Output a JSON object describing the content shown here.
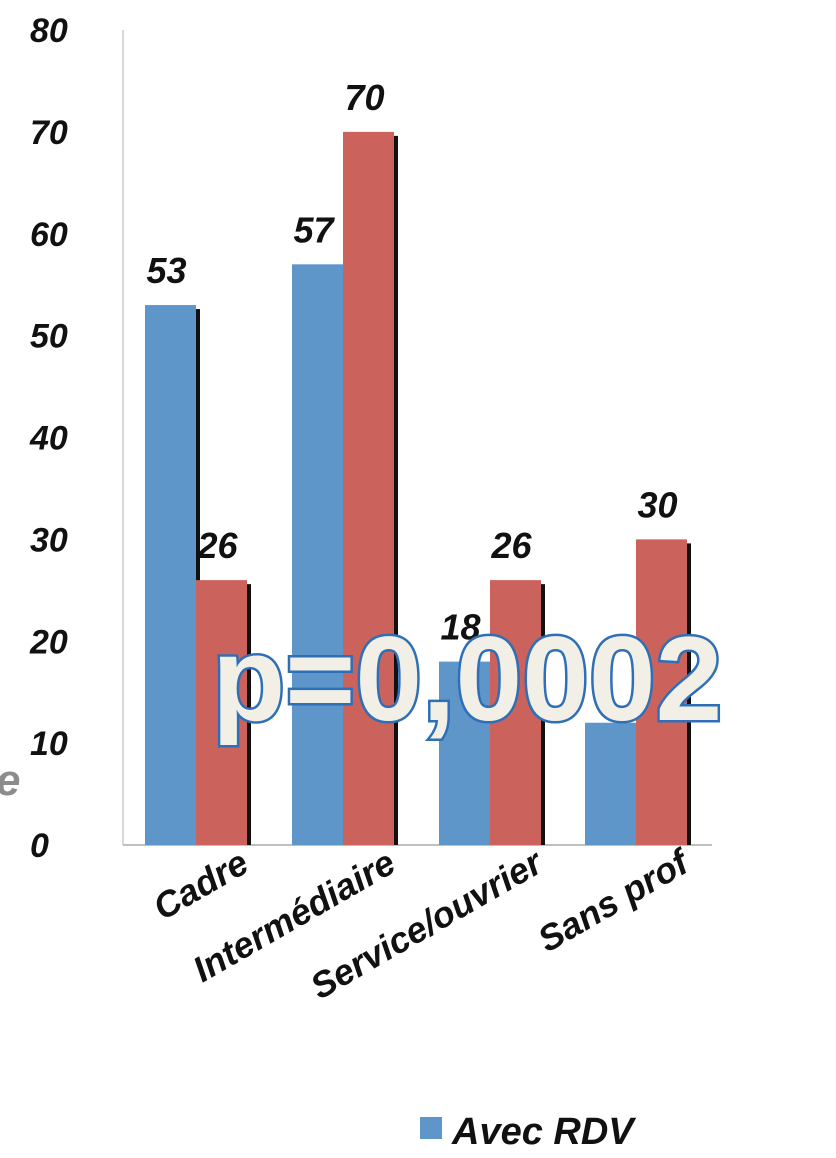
{
  "chart_data": {
    "type": "bar",
    "categories": [
      "Cadre",
      "Intermédiaire",
      "Service/ouvrier",
      "Sans prof"
    ],
    "series": [
      {
        "name": "Avec RDV",
        "color": "#5f96c9",
        "values": [
          53,
          57,
          18,
          12
        ]
      },
      {
        "color": "#cc625c",
        "values": [
          26,
          70,
          26,
          30
        ]
      }
    ],
    "data_labels": [
      [
        "53",
        "57",
        "18",
        ""
      ],
      [
        "26",
        "70",
        "26",
        "30"
      ]
    ],
    "ylim": [
      0,
      80
    ],
    "yticks": [
      "0",
      "10",
      "20",
      "30",
      "40",
      "50",
      "60",
      "70",
      "80"
    ],
    "grid": false,
    "legend_position": "bottom"
  },
  "annotation": "p=0,0002",
  "edge_fragment": "e"
}
